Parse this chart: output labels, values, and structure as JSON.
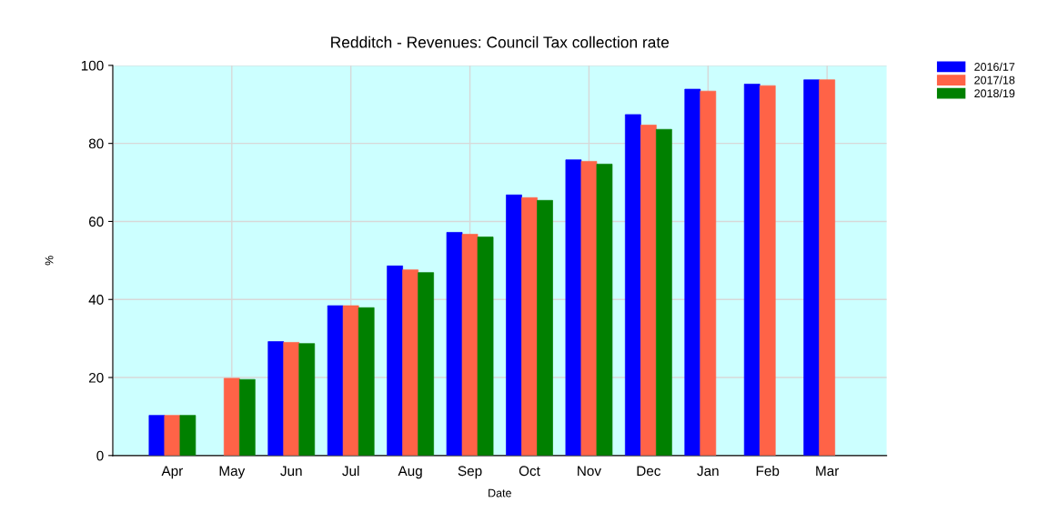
{
  "chart_data": {
    "type": "bar",
    "title": "Redditch - Revenues: Council Tax collection rate",
    "xlabel": "Date",
    "ylabel": "%",
    "categories": [
      "Apr",
      "May",
      "Jun",
      "Jul",
      "Aug",
      "Sep",
      "Oct",
      "Nov",
      "Dec",
      "Jan",
      "Feb",
      "Mar"
    ],
    "series": [
      {
        "name": "2016/17",
        "color": "#0000ff",
        "values": [
          10.3,
          null,
          29.2,
          38.4,
          48.6,
          57.2,
          66.8,
          75.8,
          87.4,
          93.9,
          95.2,
          96.3
        ]
      },
      {
        "name": "2017/18",
        "color": "#ff6347",
        "values": [
          10.3,
          19.8,
          29.0,
          38.4,
          47.6,
          56.7,
          66.1,
          75.4,
          84.7,
          93.4,
          94.8,
          96.3
        ]
      },
      {
        "name": "2018/19",
        "color": "#008000",
        "values": [
          10.3,
          19.5,
          28.7,
          37.9,
          46.9,
          56.0,
          65.4,
          74.7,
          83.6,
          null,
          null,
          null
        ]
      }
    ],
    "ylim": [
      0,
      100
    ],
    "yticks": [
      0,
      20,
      40,
      60,
      80,
      100
    ],
    "grid": true,
    "legend": "top right"
  }
}
